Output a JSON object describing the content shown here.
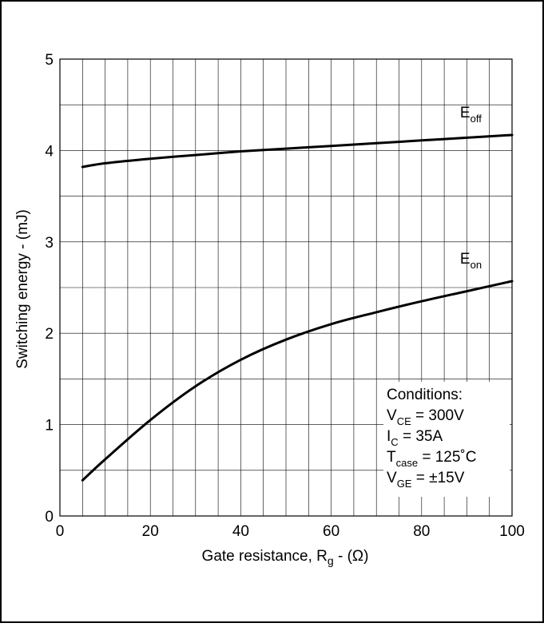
{
  "chart_data": {
    "type": "line",
    "xlabel_parts": {
      "pre": "Gate resistance, R",
      "sub": "g",
      "post": " - (Ω)"
    },
    "ylabel": "Switching energy - (mJ)",
    "xlim": [
      0,
      100
    ],
    "ylim": [
      0,
      5
    ],
    "x_ticks": [
      "0",
      "20",
      "40",
      "60",
      "80",
      "100"
    ],
    "y_ticks": [
      "0",
      "1",
      "2",
      "3",
      "4",
      "5"
    ],
    "grid": true,
    "series": [
      {
        "name_parts": {
          "main": "E",
          "sub": "off"
        },
        "x": [
          5,
          10,
          20,
          30,
          40,
          50,
          60,
          70,
          80,
          90,
          100
        ],
        "y": [
          3.82,
          3.86,
          3.91,
          3.95,
          3.99,
          4.02,
          4.05,
          4.08,
          4.11,
          4.14,
          4.17
        ]
      },
      {
        "name_parts": {
          "main": "E",
          "sub": "on"
        },
        "x": [
          5,
          10,
          20,
          30,
          40,
          50,
          60,
          70,
          80,
          90,
          100
        ],
        "y": [
          0.39,
          0.62,
          1.05,
          1.42,
          1.71,
          1.93,
          2.1,
          2.23,
          2.35,
          2.46,
          2.57
        ]
      }
    ],
    "conditions": {
      "title": "Conditions:",
      "lines": [
        {
          "main": "V",
          "sub": "CE",
          "rest": " = 300V"
        },
        {
          "main": "I",
          "sub": "C",
          "rest": " = 35A"
        },
        {
          "main": "T",
          "sub": "case",
          "rest": " = 125˚C"
        },
        {
          "main": "V",
          "sub": "GE",
          "rest": " = ±15V"
        }
      ]
    }
  }
}
